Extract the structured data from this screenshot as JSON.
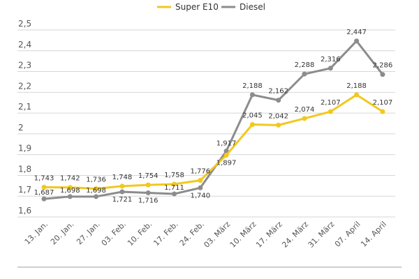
{
  "chart_data": {
    "type": "line",
    "categories": [
      "13. Jan.",
      "20. Jan.",
      "27. Jan.",
      "03. Feb.",
      "10. Feb.",
      "17. Feb.",
      "24. Feb.",
      "03. März",
      "10. März",
      "17. März",
      "24. März",
      "31. März",
      "07. April",
      "14. April"
    ],
    "series": [
      {
        "name": "Super E10",
        "color": "#f2c81f",
        "values": [
          1.743,
          1.742,
          1.736,
          1.748,
          1.754,
          1.758,
          1.776,
          1.897,
          2.045,
          2.042,
          2.074,
          2.107,
          2.188,
          2.107
        ],
        "labels": [
          "1,743",
          "1,742",
          "1,736",
          "1,748",
          "1,754",
          "1,758",
          "1,776",
          "1,897",
          "2,045",
          "2,042",
          "2,074",
          "2,107",
          "2,188",
          "2,107"
        ]
      },
      {
        "name": "Diesel",
        "color": "#8c8c8c",
        "values": [
          1.687,
          1.698,
          1.698,
          1.721,
          1.716,
          1.711,
          1.74,
          1.917,
          2.188,
          2.162,
          2.288,
          2.316,
          2.447,
          2.286
        ],
        "labels": [
          "1,687",
          "1,698",
          "1,698",
          "1,721",
          "1,716",
          "1,711",
          "1,740",
          "1,917",
          "2,188",
          "2,162",
          "2,288",
          "2,316",
          "2,447",
          "2,286"
        ]
      }
    ],
    "yticks": [
      1.6,
      1.7,
      1.8,
      1.9,
      2.0,
      2.1,
      2.2,
      2.3,
      2.4,
      2.5
    ],
    "ytick_labels": [
      "1,6",
      "1,7",
      "1,8",
      "1,9",
      "2",
      "2,1",
      "2,2",
      "2,3",
      "2,4",
      "2,5"
    ],
    "ylim": [
      1.6,
      2.5
    ],
    "grid": true,
    "legend": "top-center"
  }
}
